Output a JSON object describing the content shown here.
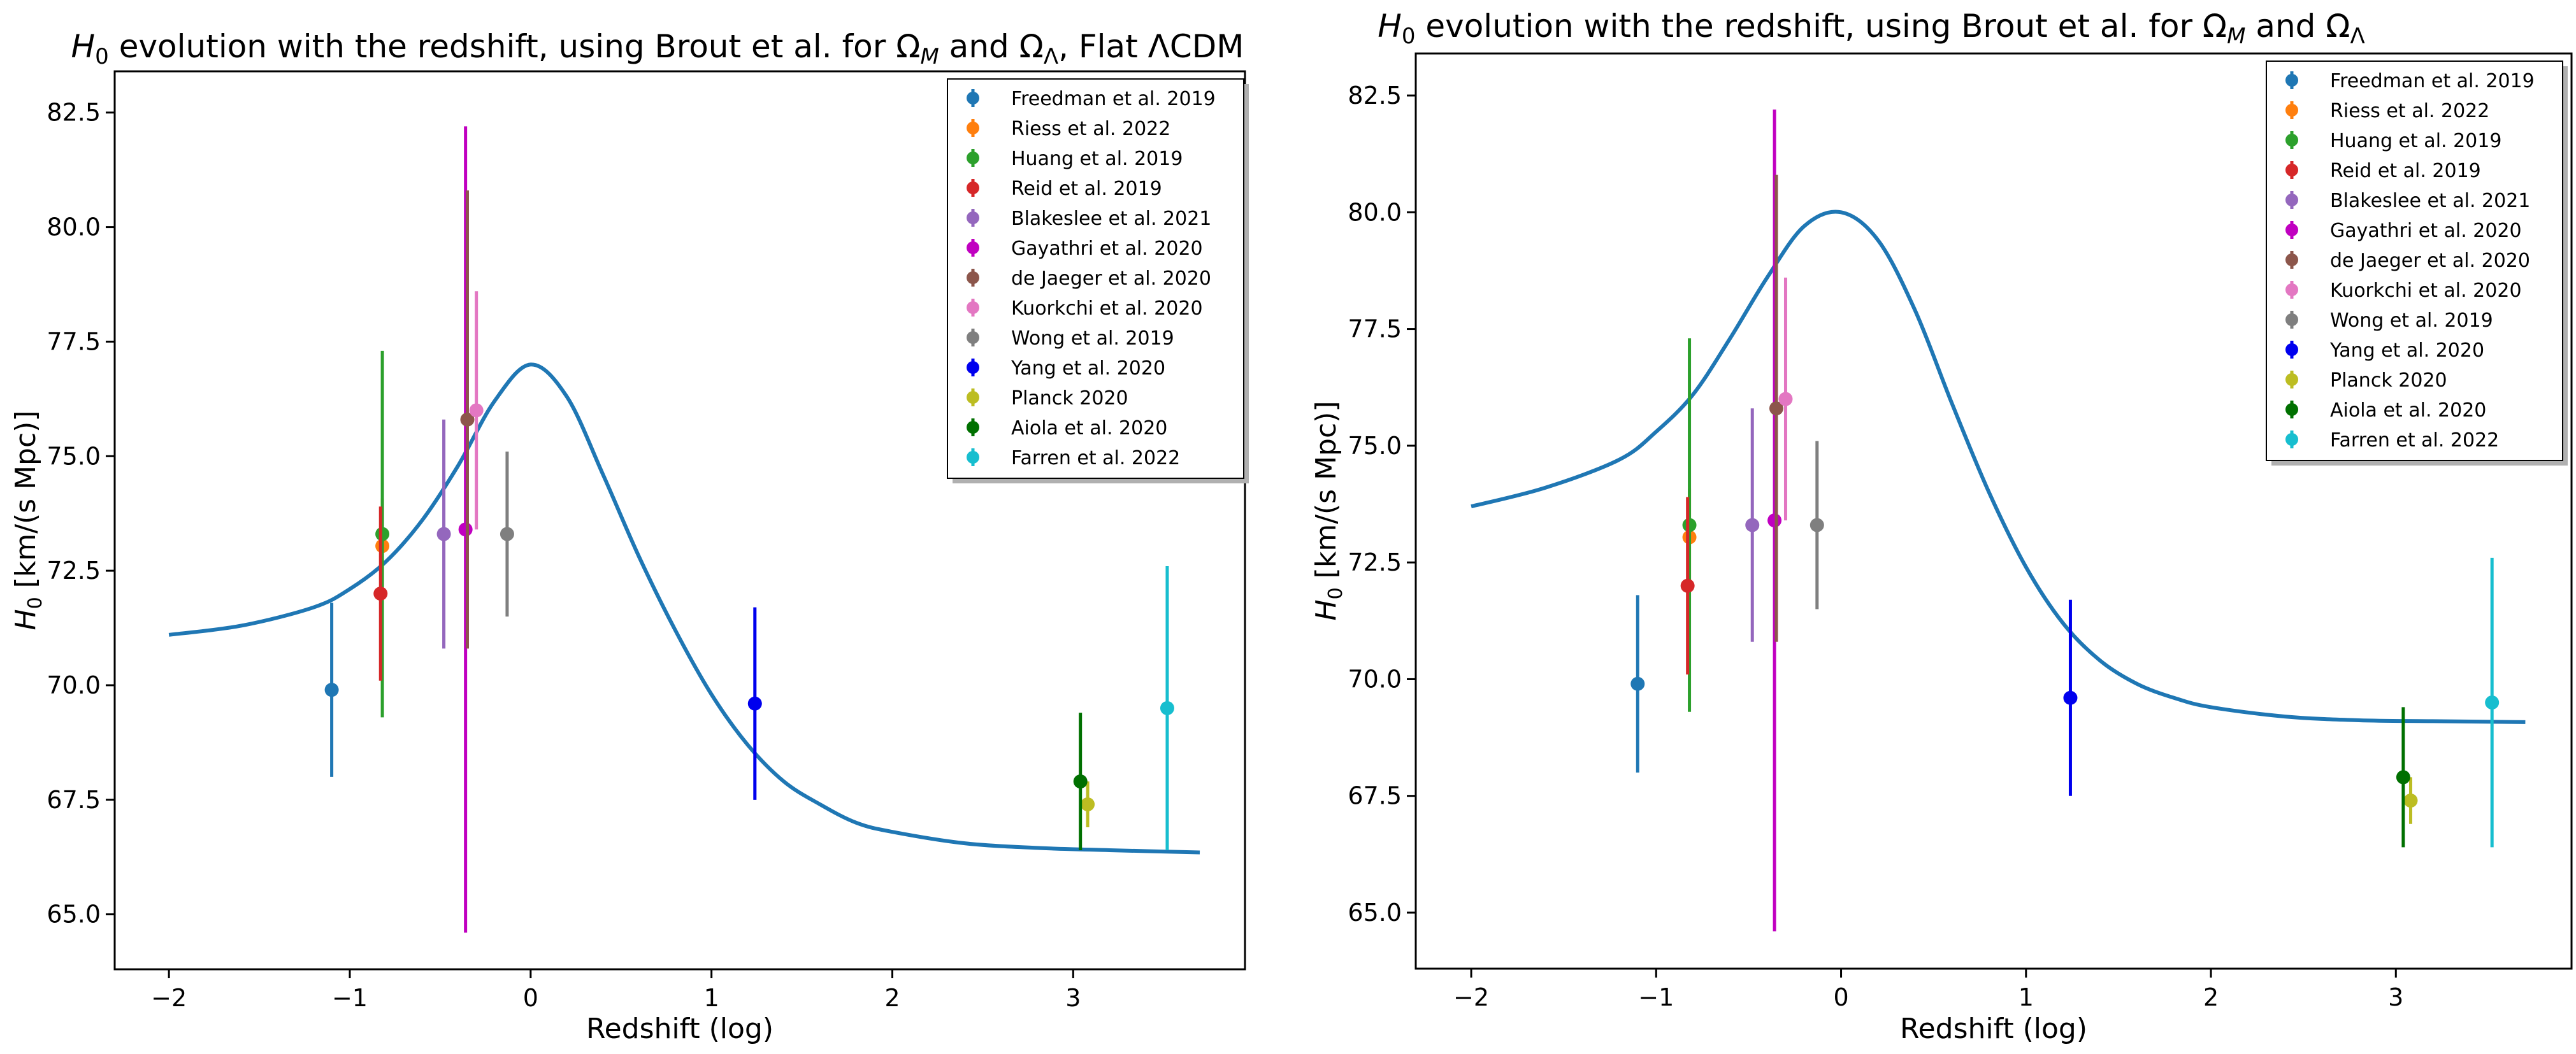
{
  "chart_data": [
    {
      "type": "errorbar-line",
      "title_prefix": "evolution with the redshift, using Brout et al. for",
      "title_suffix": ", Flat ΛCDM",
      "xlabel": "Redshift (log)",
      "ylabel_unit": "[km/(s Mpc)]",
      "xlim": [
        -2.3,
        3.95
      ],
      "ylim": [
        63.8,
        83.4
      ],
      "xticks": [
        -2,
        -1,
        0,
        1,
        2,
        3
      ],
      "xtick_labels": [
        "−2",
        "−1",
        "0",
        "1",
        "2",
        "3"
      ],
      "yticks": [
        65.0,
        67.5,
        70.0,
        72.5,
        75.0,
        77.5,
        80.0,
        82.5
      ],
      "ytick_labels": [
        "65.0",
        "67.5",
        "70.0",
        "72.5",
        "75.0",
        "77.5",
        "80.0",
        "82.5"
      ],
      "legend_loc": "top-right",
      "curve": {
        "color": "#1f77b4",
        "x": [
          -2.0,
          -1.6,
          -1.2,
          -1.0,
          -0.8,
          -0.6,
          -0.4,
          -0.2,
          0.0,
          0.2,
          0.4,
          0.6,
          0.8,
          1.0,
          1.2,
          1.4,
          1.6,
          1.8,
          2.0,
          2.4,
          2.8,
          3.2,
          3.7
        ],
        "y": [
          71.1,
          71.3,
          71.7,
          72.1,
          72.7,
          73.6,
          74.8,
          76.2,
          77.0,
          76.3,
          74.6,
          72.8,
          71.2,
          69.8,
          68.7,
          67.9,
          67.4,
          67.0,
          66.8,
          66.55,
          66.45,
          66.4,
          66.35
        ]
      },
      "series": [
        {
          "name": "Freedman et al. 2019",
          "color": "#1f77b4",
          "x": -1.1,
          "y": 69.9,
          "ylo": 68.0,
          "yhi": 71.8
        },
        {
          "name": "Riess et al. 2022",
          "color": "#ff7f0e",
          "x": -0.82,
          "y": 73.04,
          "ylo": 72.0,
          "yhi": 74.08
        },
        {
          "name": "Huang et al. 2019",
          "color": "#2ca02c",
          "x": -0.82,
          "y": 73.3,
          "ylo": 69.3,
          "yhi": 77.3
        },
        {
          "name": "Reid et al. 2019",
          "color": "#d62728",
          "x": -0.83,
          "y": 72.0,
          "ylo": 70.1,
          "yhi": 73.9
        },
        {
          "name": "Blakeslee et al. 2021",
          "color": "#9467bd",
          "x": -0.48,
          "y": 73.3,
          "ylo": 70.8,
          "yhi": 75.8
        },
        {
          "name": "Gayathri et al. 2020",
          "color": "#c000c0",
          "x": -0.36,
          "y": 73.4,
          "ylo": 64.6,
          "yhi": 82.2
        },
        {
          "name": "de Jaeger et al. 2020",
          "color": "#8c564b",
          "x": -0.35,
          "y": 75.8,
          "ylo": 70.8,
          "yhi": 80.8
        },
        {
          "name": "Kuorkchi et al. 2020",
          "color": "#e377c2",
          "x": -0.3,
          "y": 76.0,
          "ylo": 73.4,
          "yhi": 78.6
        },
        {
          "name": "Wong et al. 2019",
          "color": "#7f7f7f",
          "x": -0.13,
          "y": 73.3,
          "ylo": 71.5,
          "yhi": 75.1
        },
        {
          "name": "Yang et al. 2020",
          "color": "#0000ee",
          "x": 1.24,
          "y": 69.6,
          "ylo": 67.5,
          "yhi": 71.7
        },
        {
          "name": "Planck 2020",
          "color": "#bcbd22",
          "x": 3.08,
          "y": 67.4,
          "ylo": 66.9,
          "yhi": 67.9
        },
        {
          "name": "Aiola et al. 2020",
          "color": "#007000",
          "x": 3.04,
          "y": 67.9,
          "ylo": 66.4,
          "yhi": 69.4
        },
        {
          "name": "Farren et al. 2022",
          "color": "#17becf",
          "x": 3.52,
          "y": 69.5,
          "ylo": 66.4,
          "yhi": 72.6
        }
      ]
    },
    {
      "type": "errorbar-line",
      "title_prefix": "evolution with the redshift, using Brout et al. for",
      "title_suffix": "",
      "xlabel": "Redshift (log)",
      "ylabel_unit": "[km/(s Mpc)]",
      "xlim": [
        -2.3,
        3.95
      ],
      "ylim": [
        63.8,
        83.4
      ],
      "xticks": [
        -2,
        -1,
        0,
        1,
        2,
        3
      ],
      "xtick_labels": [
        "−2",
        "−1",
        "0",
        "1",
        "2",
        "3"
      ],
      "yticks": [
        65.0,
        67.5,
        70.0,
        72.5,
        75.0,
        77.5,
        80.0,
        82.5
      ],
      "ytick_labels": [
        "65.0",
        "67.5",
        "70.0",
        "72.5",
        "75.0",
        "77.5",
        "80.0",
        "82.5"
      ],
      "legend_loc": "top-right",
      "curve": {
        "color": "#1f77b4",
        "x": [
          -2.0,
          -1.6,
          -1.2,
          -1.0,
          -0.8,
          -0.6,
          -0.4,
          -0.2,
          0.0,
          0.2,
          0.4,
          0.6,
          0.8,
          1.0,
          1.2,
          1.4,
          1.6,
          1.8,
          2.0,
          2.4,
          2.8,
          3.2,
          3.7
        ],
        "y": [
          73.7,
          74.1,
          74.7,
          75.3,
          76.1,
          77.3,
          78.6,
          79.7,
          80.0,
          79.4,
          77.9,
          75.9,
          74.0,
          72.4,
          71.2,
          70.4,
          69.9,
          69.6,
          69.4,
          69.2,
          69.12,
          69.1,
          69.08
        ]
      },
      "series": [
        {
          "name": "Freedman et al. 2019",
          "color": "#1f77b4",
          "x": -1.1,
          "y": 69.9,
          "ylo": 68.0,
          "yhi": 71.8
        },
        {
          "name": "Riess et al. 2022",
          "color": "#ff7f0e",
          "x": -0.82,
          "y": 73.04,
          "ylo": 72.0,
          "yhi": 74.08
        },
        {
          "name": "Huang et al. 2019",
          "color": "#2ca02c",
          "x": -0.82,
          "y": 73.3,
          "ylo": 69.3,
          "yhi": 77.3
        },
        {
          "name": "Reid et al. 2019",
          "color": "#d62728",
          "x": -0.83,
          "y": 72.0,
          "ylo": 70.1,
          "yhi": 73.9
        },
        {
          "name": "Blakeslee et al. 2021",
          "color": "#9467bd",
          "x": -0.48,
          "y": 73.3,
          "ylo": 70.8,
          "yhi": 75.8
        },
        {
          "name": "Gayathri et al. 2020",
          "color": "#c000c0",
          "x": -0.36,
          "y": 73.4,
          "ylo": 64.6,
          "yhi": 82.2
        },
        {
          "name": "de Jaeger et al. 2020",
          "color": "#8c564b",
          "x": -0.35,
          "y": 75.8,
          "ylo": 70.8,
          "yhi": 80.8
        },
        {
          "name": "Kuorkchi et al. 2020",
          "color": "#e377c2",
          "x": -0.3,
          "y": 76.0,
          "ylo": 73.4,
          "yhi": 78.6
        },
        {
          "name": "Wong et al. 2019",
          "color": "#7f7f7f",
          "x": -0.13,
          "y": 73.3,
          "ylo": 71.5,
          "yhi": 75.1
        },
        {
          "name": "Yang et al. 2020",
          "color": "#0000ee",
          "x": 1.24,
          "y": 69.6,
          "ylo": 67.5,
          "yhi": 71.7
        },
        {
          "name": "Planck 2020",
          "color": "#bcbd22",
          "x": 3.08,
          "y": 67.4,
          "ylo": 66.9,
          "yhi": 67.9
        },
        {
          "name": "Aiola et al. 2020",
          "color": "#007000",
          "x": 3.04,
          "y": 67.9,
          "ylo": 66.4,
          "yhi": 69.4
        },
        {
          "name": "Farren et al. 2022",
          "color": "#17becf",
          "x": 3.52,
          "y": 69.5,
          "ylo": 66.4,
          "yhi": 72.6
        }
      ]
    }
  ]
}
